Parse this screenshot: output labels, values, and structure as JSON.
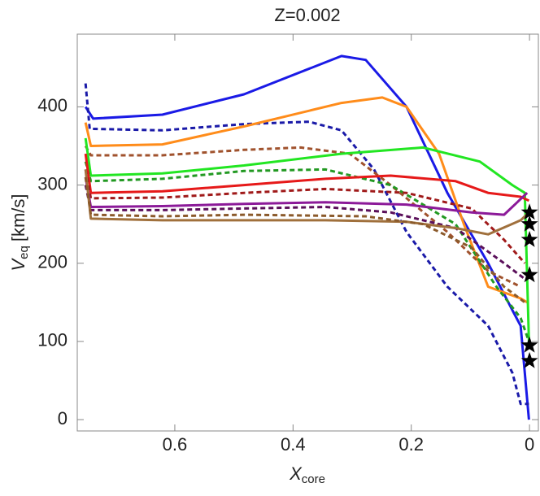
{
  "chart_data": {
    "type": "line",
    "title": "Z=0.002",
    "ylabel": {
      "main": "V",
      "sub": "eq",
      "unit": "[km/s]"
    },
    "xlabel": {
      "main": "X",
      "sub": "core"
    },
    "xlim": [
      0.765,
      -0.015
    ],
    "ylim": [
      -14.5,
      493
    ],
    "xticks": [
      0.6,
      0.4,
      0.2,
      0
    ],
    "yticks": [
      0,
      100,
      200,
      300,
      400
    ],
    "series": [
      {
        "color": "#1a1ae6",
        "dash": false,
        "x": [
          0.751,
          0.738,
          0.621,
          0.483,
          0.318,
          0.277,
          0.208,
          0.139,
          0.07,
          0.029,
          0.015,
          0.001
        ],
        "values": [
          400,
          385,
          390,
          416,
          465,
          460,
          400,
          290,
          200,
          140,
          120,
          0
        ]
      },
      {
        "color": "#1a1aa8",
        "dash": true,
        "x": [
          0.751,
          0.744,
          0.621,
          0.483,
          0.373,
          0.318,
          0.263,
          0.208,
          0.139,
          0.07,
          0.029,
          0.015,
          0.001
        ],
        "values": [
          430,
          372,
          370,
          378,
          381,
          370,
          320,
          240,
          170,
          120,
          60,
          20,
          20
        ]
      },
      {
        "color": "#ff8c1a",
        "dash": false,
        "x": [
          0.751,
          0.742,
          0.621,
          0.483,
          0.318,
          0.249,
          0.208,
          0.153,
          0.111,
          0.07,
          0.015,
          0.004
        ],
        "values": [
          380,
          350,
          352,
          375,
          405,
          412,
          400,
          340,
          250,
          170,
          155,
          150
        ]
      },
      {
        "color": "#a0522d",
        "dash": true,
        "x": [
          0.751,
          0.742,
          0.621,
          0.483,
          0.387,
          0.304,
          0.235,
          0.139,
          0.07,
          0.015
        ],
        "values": [
          350,
          338,
          338,
          345,
          348,
          340,
          300,
          240,
          190,
          170
        ]
      },
      {
        "color": "#22e622",
        "dash": false,
        "x": [
          0.751,
          0.742,
          0.621,
          0.483,
          0.318,
          0.18,
          0.084,
          0.029,
          0.008,
          0.001
        ],
        "values": [
          360,
          312,
          315,
          325,
          340,
          348,
          330,
          300,
          290,
          100
        ]
      },
      {
        "color": "#229922",
        "dash": true,
        "x": [
          0.751,
          0.742,
          0.621,
          0.483,
          0.345,
          0.235,
          0.125,
          0.056,
          0.015,
          0.001
        ],
        "values": [
          330,
          305,
          308,
          318,
          320,
          300,
          250,
          170,
          130,
          100
        ]
      },
      {
        "color": "#e61919",
        "dash": false,
        "x": [
          0.751,
          0.742,
          0.621,
          0.483,
          0.345,
          0.235,
          0.125,
          0.07,
          0.015,
          0.001
        ],
        "values": [
          340,
          290,
          292,
          300,
          308,
          312,
          305,
          290,
          285,
          280
        ]
      },
      {
        "color": "#a01a1a",
        "dash": true,
        "x": [
          0.751,
          0.742,
          0.621,
          0.483,
          0.345,
          0.208,
          0.098,
          0.043,
          0.008
        ],
        "values": [
          320,
          283,
          284,
          290,
          295,
          290,
          270,
          230,
          200
        ]
      },
      {
        "color": "#8c1a99",
        "dash": false,
        "x": [
          0.751,
          0.742,
          0.621,
          0.483,
          0.345,
          0.208,
          0.098,
          0.043,
          0.004
        ],
        "values": [
          310,
          272,
          273,
          276,
          278,
          275,
          265,
          262,
          290
        ]
      },
      {
        "color": "#5a0f5a",
        "dash": true,
        "x": [
          0.751,
          0.742,
          0.621,
          0.483,
          0.345,
          0.235,
          0.125,
          0.043,
          0.008
        ],
        "values": [
          300,
          268,
          268,
          270,
          272,
          265,
          245,
          200,
          180
        ]
      },
      {
        "color": "#a0703c",
        "dash": false,
        "x": [
          0.751,
          0.742,
          0.621,
          0.483,
          0.345,
          0.208,
          0.125,
          0.07,
          0.015,
          0.001
        ],
        "values": [
          320,
          257,
          255,
          255,
          255,
          253,
          245,
          237,
          255,
          265
        ]
      },
      {
        "color": "#8b5a2b",
        "dash": true,
        "x": [
          0.751,
          0.742,
          0.621,
          0.483,
          0.277,
          0.18,
          0.098,
          0.043,
          0.008
        ],
        "values": [
          310,
          262,
          260,
          262,
          260,
          250,
          220,
          170,
          150
        ]
      }
    ],
    "markers": {
      "color": "#000000",
      "x": [
        0,
        0,
        0,
        0,
        0,
        0
      ],
      "values": [
        265,
        250,
        230,
        185,
        95,
        75
      ]
    }
  }
}
